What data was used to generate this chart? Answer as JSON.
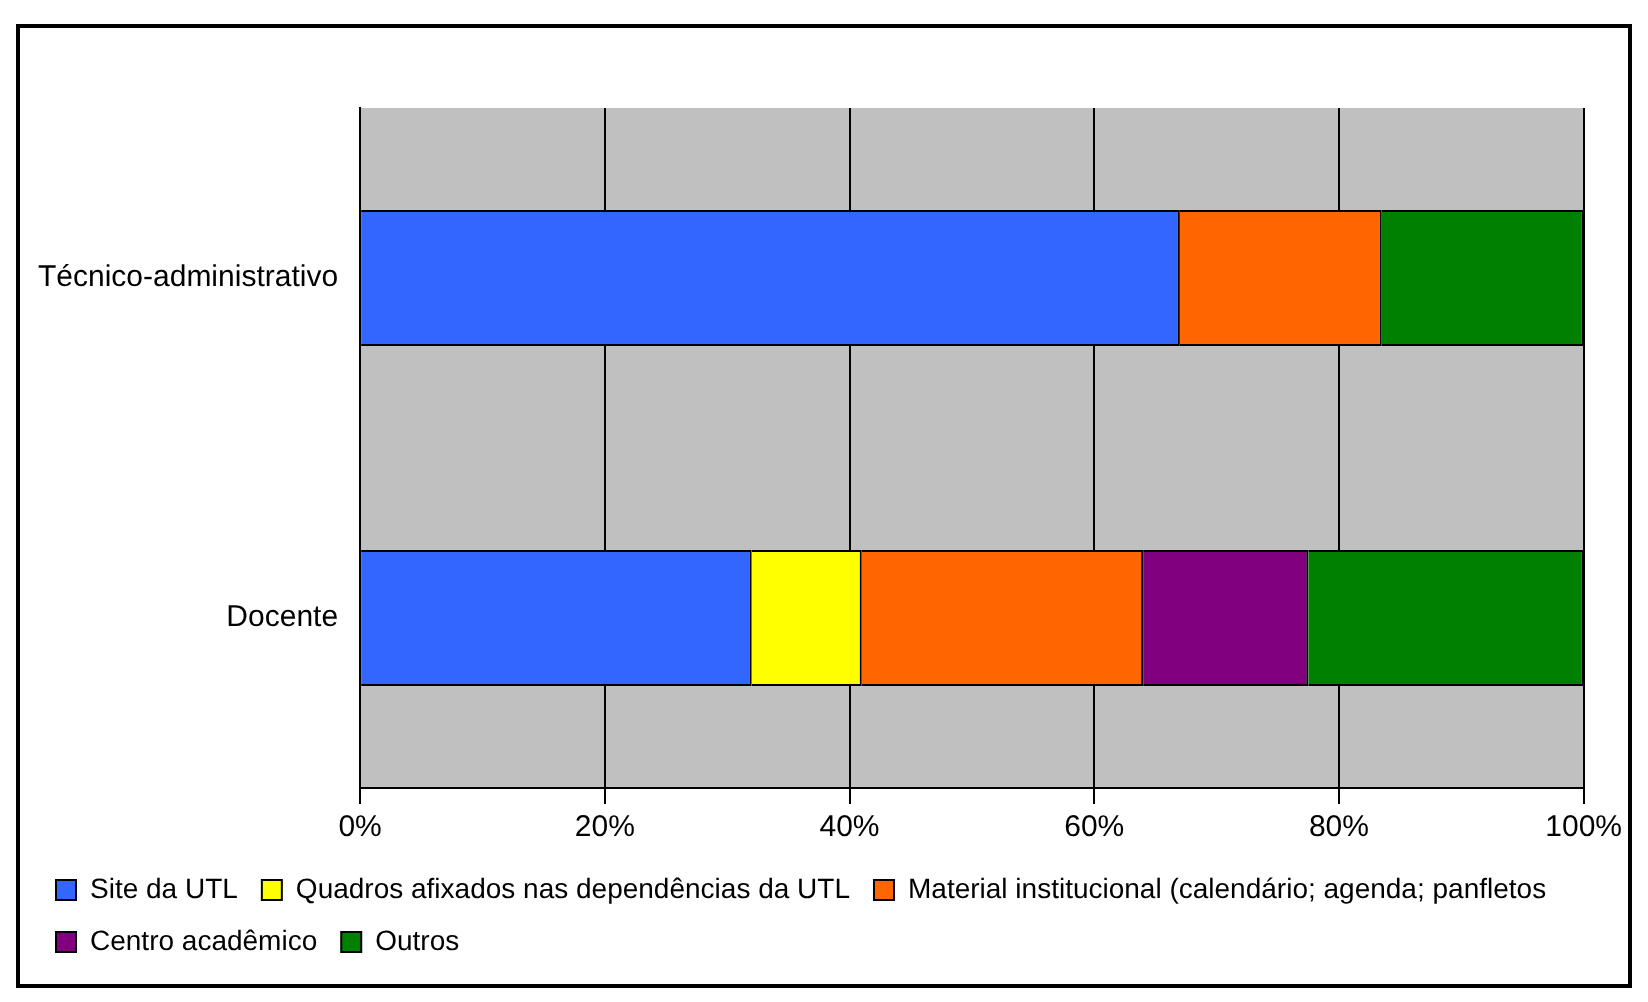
{
  "chart_data": {
    "type": "bar",
    "orientation": "horizontal",
    "stacked": true,
    "categories": [
      "Técnico-administrativo",
      "Docente"
    ],
    "series": [
      {
        "name": "Site da UTL",
        "color": "#3366ff",
        "values": [
          67,
          32
        ]
      },
      {
        "name": "Quadros afixados nas dependências da UTL",
        "color": "#ffff00",
        "values": [
          null,
          9
        ]
      },
      {
        "name": "Material institucional (calendário; agenda; panfletos",
        "color": "#ff6600",
        "values": [
          16.5,
          23
        ]
      },
      {
        "name": "Centro acadêmico",
        "color": "#800080",
        "values": [
          null,
          13.5
        ]
      },
      {
        "name": "Outros",
        "color": "#008000",
        "values": [
          16.5,
          22.5
        ]
      }
    ],
    "xlim": [
      0,
      100
    ],
    "xticks": [
      {
        "value": 0,
        "label": "0%"
      },
      {
        "value": 20,
        "label": "20%"
      },
      {
        "value": 40,
        "label": "40%"
      },
      {
        "value": 60,
        "label": "60%"
      },
      {
        "value": 80,
        "label": "80%"
      },
      {
        "value": 100,
        "label": "100%"
      }
    ],
    "grid": "x",
    "legend": "bottom"
  }
}
